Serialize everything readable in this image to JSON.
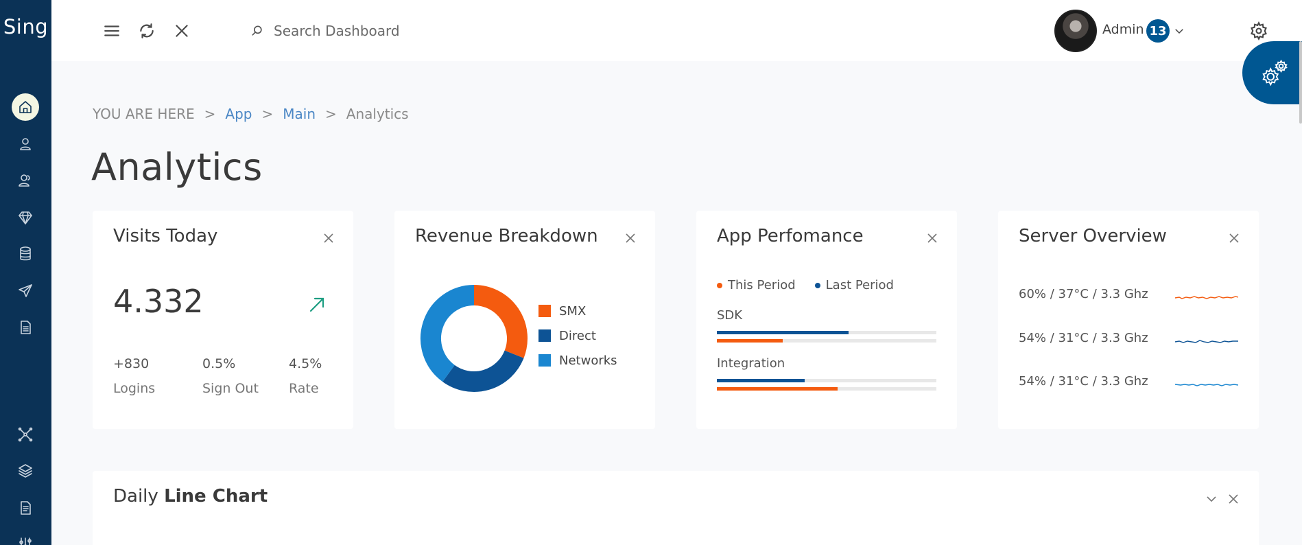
{
  "brand": "Sing",
  "sidebar": {
    "items": [
      {
        "icon": "home-icon",
        "active": true
      },
      {
        "icon": "user-icon"
      },
      {
        "icon": "users-icon"
      },
      {
        "icon": "diamond-icon"
      },
      {
        "icon": "database-icon"
      },
      {
        "icon": "send-icon"
      },
      {
        "icon": "document-icon"
      },
      {
        "icon": "network-icon"
      },
      {
        "icon": "layers-icon"
      },
      {
        "icon": "file-list-icon"
      },
      {
        "icon": "sliders-icon"
      }
    ]
  },
  "header": {
    "search_placeholder": "Search Dashboard",
    "user_name": "Admin",
    "notification_count": "13"
  },
  "breadcrumb": {
    "prefix": "YOU ARE HERE",
    "items": [
      "App",
      "Main",
      "Analytics"
    ],
    "separator": ">"
  },
  "page_title": "Analytics",
  "cards": {
    "visits": {
      "title": "Visits Today",
      "value": "4.332",
      "stats": [
        {
          "value": "+830",
          "label": "Logins"
        },
        {
          "value": "0.5%",
          "label": "Sign Out"
        },
        {
          "value": "4.5%",
          "label": "Rate"
        }
      ]
    },
    "revenue": {
      "title": "Revenue Breakdown",
      "legend": [
        {
          "label": "SMX",
          "color": "#f45b0f"
        },
        {
          "label": "Direct",
          "color": "#0d5395"
        },
        {
          "label": "Networks",
          "color": "#1a86d0"
        }
      ],
      "shares": [
        0.31,
        0.29,
        0.4
      ]
    },
    "performance": {
      "title": "App Perfomance",
      "legend": [
        {
          "label": "This Period",
          "color": "#f45b0f"
        },
        {
          "label": "Last Period",
          "color": "#0d5395"
        }
      ],
      "metrics": [
        {
          "label": "SDK",
          "last": 0.6,
          "this": 0.3
        },
        {
          "label": "Integration",
          "last": 0.4,
          "this": 0.55
        }
      ]
    },
    "server": {
      "title": "Server Overview",
      "rows": [
        {
          "text": "60% / 37°C / 3.3 Ghz",
          "color": "#f45b0f"
        },
        {
          "text": "54% / 31°C / 3.3 Ghz",
          "color": "#0d5395"
        },
        {
          "text": "54% / 31°C / 3.3 Ghz",
          "color": "#1a86d0"
        }
      ]
    }
  },
  "line_chart": {
    "title_prefix": "Daily",
    "title_bold": "Line Chart"
  }
}
